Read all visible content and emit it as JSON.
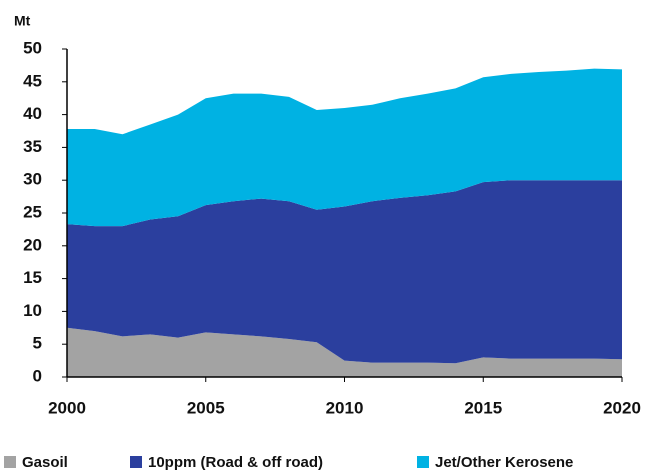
{
  "chart_data": {
    "type": "stacked_area",
    "y_label": "Mt",
    "x": [
      2000,
      2001,
      2002,
      2003,
      2004,
      2005,
      2006,
      2007,
      2008,
      2009,
      2010,
      2011,
      2012,
      2013,
      2014,
      2015,
      2016,
      2017,
      2018,
      2019,
      2020
    ],
    "series": [
      {
        "name": "Gasoil",
        "color": "#a3a3a3",
        "values": [
          7.5,
          7,
          6.2,
          6.5,
          6,
          6.8,
          6.5,
          6.2,
          5.8,
          5.3,
          2.5,
          2.2,
          2.2,
          2.2,
          2.1,
          3,
          2.8,
          2.8,
          2.8,
          2.8,
          2.7
        ]
      },
      {
        "name": "10ppm (Road & off road)",
        "color": "#2b3f9e",
        "values": [
          15.8,
          16,
          16.8,
          17.5,
          18.5,
          19.4,
          20.3,
          21,
          21,
          20.2,
          23.5,
          24.6,
          25.1,
          25.5,
          26.2,
          26.7,
          27.2,
          27.2,
          27.2,
          27.2,
          27.3
        ]
      },
      {
        "name": "Jet/Other Kerosene",
        "color": "#00b2e3",
        "values": [
          14.5,
          14.8,
          14,
          14.5,
          15.5,
          16.3,
          16.4,
          16,
          15.9,
          15.2,
          15,
          14.7,
          15.2,
          15.5,
          15.7,
          16,
          16.2,
          16.5,
          16.7,
          17,
          16.9
        ]
      }
    ],
    "xlim": [
      2000,
      2020
    ],
    "xticks": [
      2000,
      2005,
      2010,
      2015,
      2020
    ],
    "ylim": [
      0,
      50
    ],
    "yticks": [
      0,
      5,
      10,
      15,
      20,
      25,
      30,
      35,
      40,
      45,
      50
    ],
    "grid": false,
    "legend": "bottom"
  }
}
